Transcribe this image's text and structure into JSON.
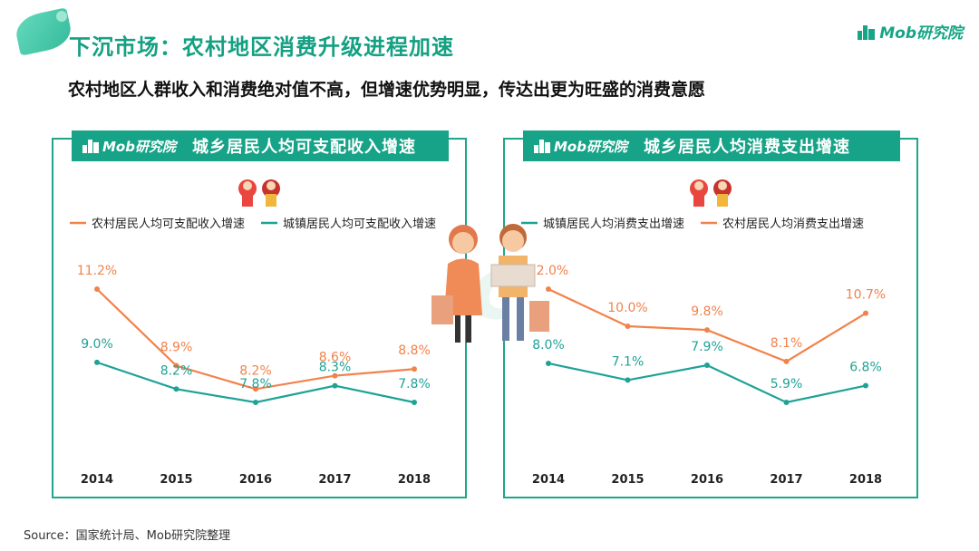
{
  "header": {
    "title": "下沉市场：农村地区消费升级进程加速",
    "brand": "Mob研究院"
  },
  "subtitle": "农村地区人群收入和消费绝对值不高，但增速优势明显，传达出更为旺盛的消费意愿",
  "watermark": "MobTech",
  "source": "Source：国家统计局、Mob研究院整理",
  "colors": {
    "accent": "#17a387",
    "orange": "#f2824b",
    "teal": "#1fa296"
  },
  "chart_data": [
    {
      "type": "line",
      "title": "城乡居民人均可支配收入增速",
      "brand": "Mob研究院",
      "categories": [
        "2014",
        "2015",
        "2016",
        "2017",
        "2018"
      ],
      "series": [
        {
          "name": "农村居民人均可支配收入增速",
          "color": "#f2824b",
          "values": [
            11.2,
            8.9,
            8.2,
            8.6,
            8.8
          ],
          "labels": [
            "11.2%",
            "8.9%",
            "8.2%",
            "8.6%",
            "8.8%"
          ]
        },
        {
          "name": "城镇居民人均可支配收入增速",
          "color": "#1fa296",
          "values": [
            9.0,
            8.2,
            7.8,
            8.3,
            7.8
          ],
          "labels": [
            "9.0%",
            "8.2%",
            "7.8%",
            "8.3%",
            "7.8%"
          ]
        }
      ],
      "legend": "top"
    },
    {
      "type": "line",
      "title": "城乡居民人均消费支出增速",
      "brand": "Mob研究院",
      "categories": [
        "2014",
        "2015",
        "2016",
        "2017",
        "2018"
      ],
      "series": [
        {
          "name": "城镇居民人均消费支出增速",
          "color": "#1fa296",
          "values": [
            8.0,
            7.1,
            7.9,
            5.9,
            6.8
          ],
          "labels": [
            "8.0%",
            "7.1%",
            "7.9%",
            "5.9%",
            "6.8%"
          ]
        },
        {
          "name": "农村居民人均消费支出增速",
          "color": "#f2824b",
          "values": [
            12.0,
            10.0,
            9.8,
            8.1,
            10.7
          ],
          "labels": [
            "12.0%",
            "10.0%",
            "9.8%",
            "8.1%",
            "10.7%"
          ]
        }
      ],
      "legend": "top"
    }
  ]
}
